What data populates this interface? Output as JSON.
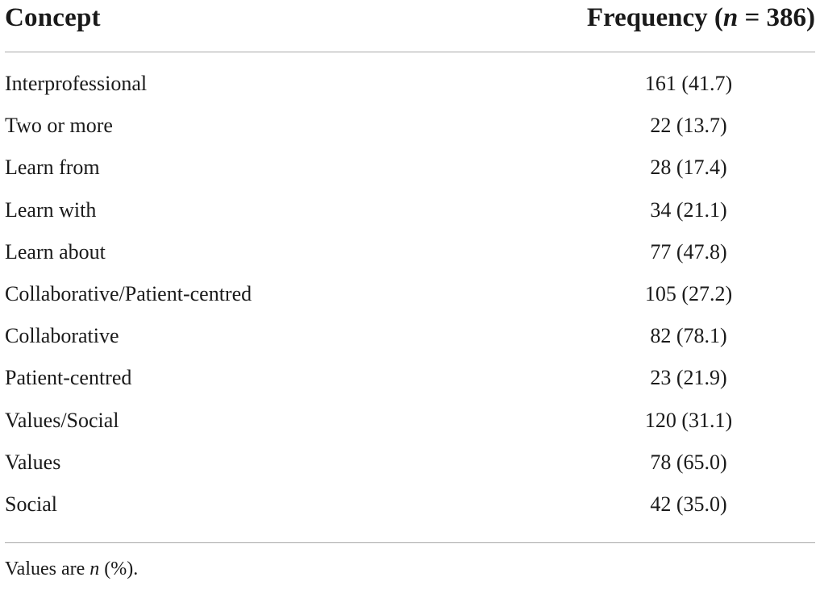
{
  "table": {
    "headers": {
      "concept": "Concept",
      "frequency_prefix": "Frequency (",
      "frequency_n": "n",
      "frequency_suffix": " = 386)"
    },
    "rows": [
      {
        "concept": "Interprofessional",
        "frequency": "161 (41.7)"
      },
      {
        "concept": "Two or more",
        "frequency": "22 (13.7)"
      },
      {
        "concept": "Learn from",
        "frequency": "28 (17.4)"
      },
      {
        "concept": "Learn with",
        "frequency": "34 (21.1)"
      },
      {
        "concept": "Learn about",
        "frequency": "77 (47.8)"
      },
      {
        "concept": "Collaborative/Patient-centred",
        "frequency": "105 (27.2)"
      },
      {
        "concept": "Collaborative",
        "frequency": "82 (78.1)"
      },
      {
        "concept": "Patient-centred",
        "frequency": "23 (21.9)"
      },
      {
        "concept": "Values/Social",
        "frequency": "120 (31.1)"
      },
      {
        "concept": "Values",
        "frequency": "78 (65.0)"
      },
      {
        "concept": "Social",
        "frequency": "42 (35.0)"
      }
    ],
    "footnote": {
      "prefix": "Values are ",
      "n": "n",
      "suffix": " (%)."
    }
  }
}
